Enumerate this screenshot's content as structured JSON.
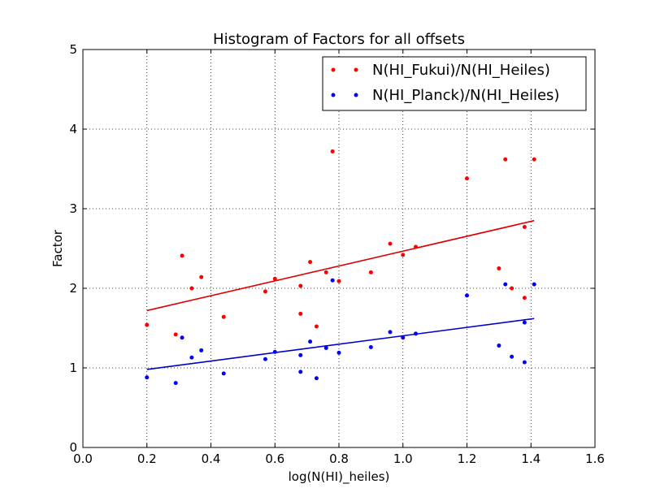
{
  "chart_data": {
    "type": "scatter",
    "title": "Histogram of Factors for all offsets",
    "xlabel": "log(N(HI)_heiles)",
    "ylabel": "Factor",
    "xlim": [
      0.0,
      1.6
    ],
    "ylim": [
      0,
      5
    ],
    "xticks": [
      "0.0",
      "0.2",
      "0.4",
      "0.6",
      "0.8",
      "1.0",
      "1.2",
      "1.4",
      "1.6"
    ],
    "yticks": [
      "0",
      "1",
      "2",
      "3",
      "4",
      "5"
    ],
    "grid": true,
    "legend_position": "top-right",
    "series": [
      {
        "name": "N(HI_Fukui)/N(HI_Heiles)",
        "color": "#ff0000",
        "fit_color": "#dd0000",
        "points": [
          [
            0.2,
            1.54
          ],
          [
            0.29,
            1.42
          ],
          [
            0.31,
            2.41
          ],
          [
            0.34,
            2.0
          ],
          [
            0.37,
            2.14
          ],
          [
            0.44,
            1.64
          ],
          [
            0.57,
            1.96
          ],
          [
            0.6,
            2.12
          ],
          [
            0.68,
            2.03
          ],
          [
            0.68,
            1.68
          ],
          [
            0.71,
            2.33
          ],
          [
            0.73,
            1.52
          ],
          [
            0.76,
            2.2
          ],
          [
            0.78,
            3.72
          ],
          [
            0.8,
            2.09
          ],
          [
            0.9,
            2.2
          ],
          [
            0.96,
            2.56
          ],
          [
            1.0,
            2.42
          ],
          [
            1.04,
            2.52
          ],
          [
            1.2,
            3.38
          ],
          [
            1.3,
            2.25
          ],
          [
            1.32,
            3.62
          ],
          [
            1.34,
            2.0
          ],
          [
            1.38,
            2.77
          ],
          [
            1.38,
            1.88
          ],
          [
            1.41,
            3.62
          ]
        ],
        "fit": [
          [
            0.2,
            1.72
          ],
          [
            1.41,
            2.85
          ]
        ]
      },
      {
        "name": "N(HI_Planck)/N(HI_Heiles)",
        "color": "#0000ff",
        "fit_color": "#0000cc",
        "points": [
          [
            0.2,
            0.88
          ],
          [
            0.29,
            0.81
          ],
          [
            0.31,
            1.38
          ],
          [
            0.34,
            1.13
          ],
          [
            0.37,
            1.22
          ],
          [
            0.44,
            0.93
          ],
          [
            0.57,
            1.11
          ],
          [
            0.6,
            1.2
          ],
          [
            0.68,
            1.16
          ],
          [
            0.68,
            0.95
          ],
          [
            0.71,
            1.33
          ],
          [
            0.73,
            0.87
          ],
          [
            0.76,
            1.25
          ],
          [
            0.78,
            2.1
          ],
          [
            0.8,
            1.19
          ],
          [
            0.9,
            1.26
          ],
          [
            0.96,
            1.45
          ],
          [
            1.0,
            1.38
          ],
          [
            1.04,
            1.43
          ],
          [
            1.2,
            1.91
          ],
          [
            1.3,
            1.28
          ],
          [
            1.32,
            2.05
          ],
          [
            1.34,
            1.14
          ],
          [
            1.38,
            1.57
          ],
          [
            1.38,
            1.07
          ],
          [
            1.41,
            2.05
          ]
        ],
        "fit": [
          [
            0.2,
            0.98
          ],
          [
            1.41,
            1.62
          ]
        ]
      }
    ]
  }
}
